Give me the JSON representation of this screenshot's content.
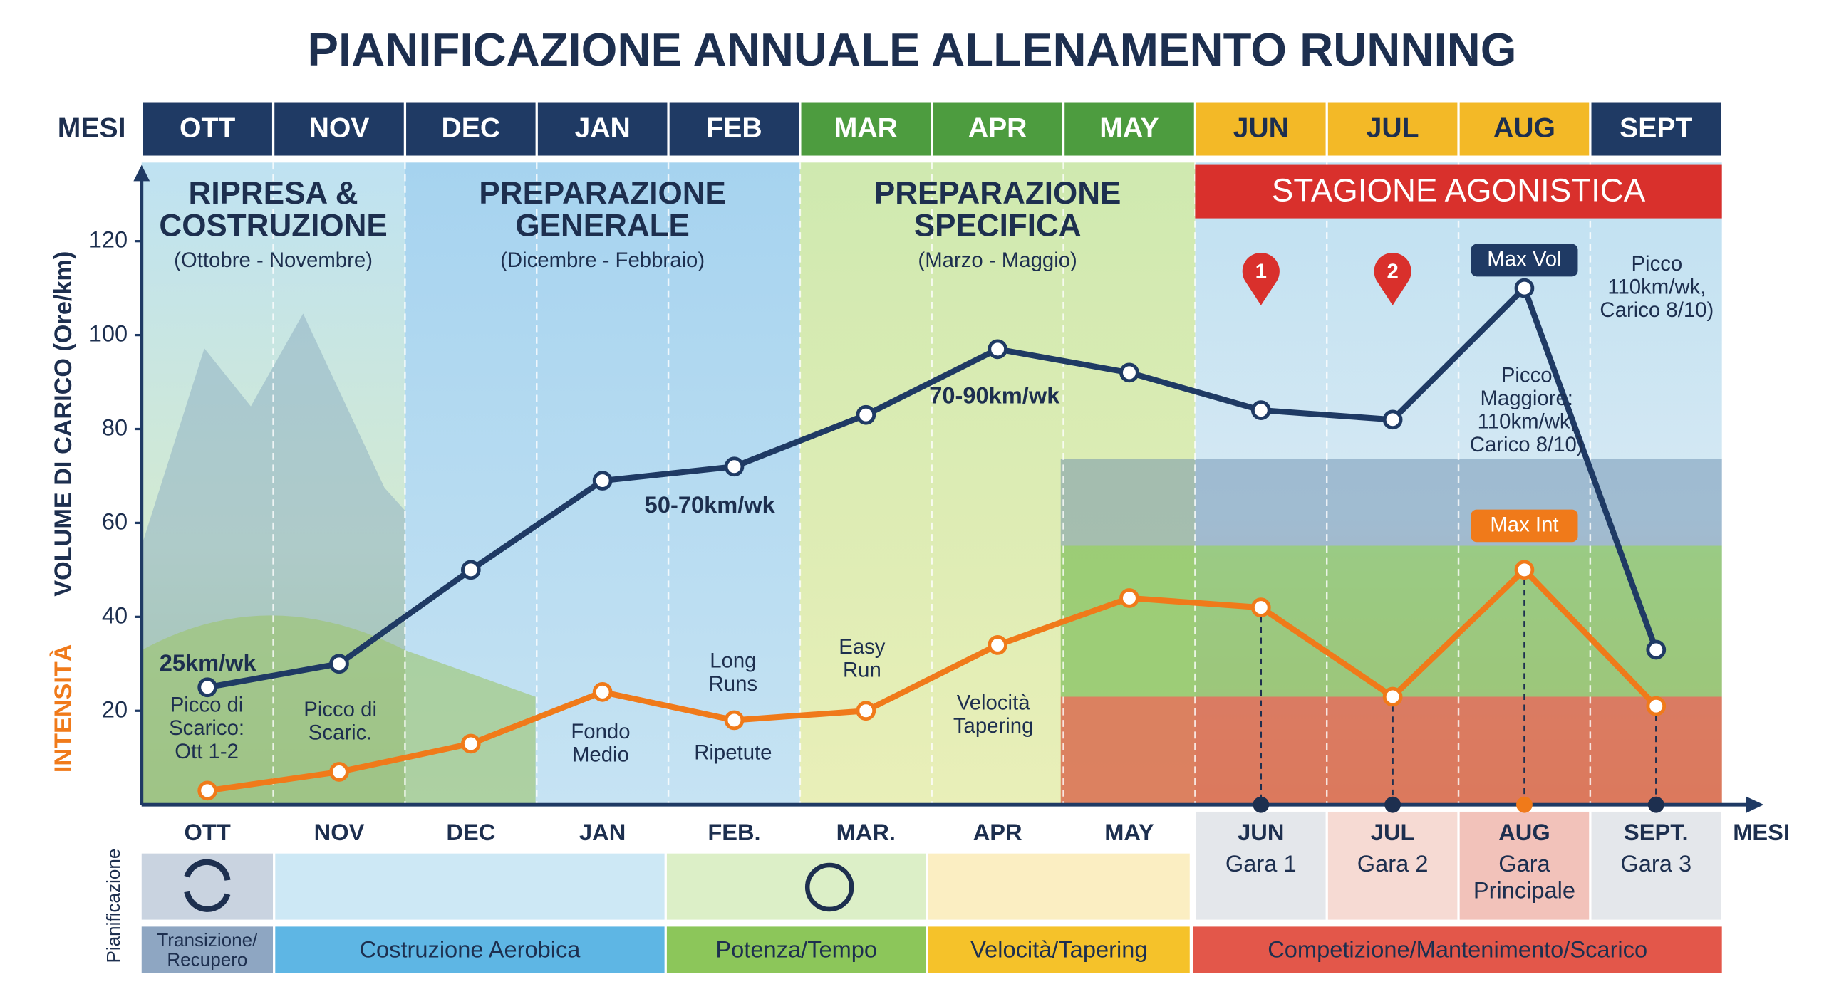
{
  "chart_data": {
    "type": "line",
    "title": "PIANIFICAZIONE ANNUALE ALLENAMENTO RUNNING",
    "months_label": "MESI",
    "months": [
      "OTT",
      "NOV",
      "DEC",
      "JAN",
      "FEB",
      "MAR",
      "APR",
      "MAY",
      "JUN",
      "JUL",
      "AUG",
      "SEPT"
    ],
    "phases": [
      {
        "title": "RIPRESA &\nCOSTRUZIONE",
        "subtitle": "(Ottobre - Novembre)"
      },
      {
        "title": "PREPARAZIONE\nGENERALE",
        "subtitle": "(Dicembre - Febbraio)"
      },
      {
        "title": "PREPARAZIONE\nSPECIFICA",
        "subtitle": "(Marzo - Maggio)"
      },
      {
        "title": "STAGIONE AGONISTICA"
      }
    ],
    "y_label": "VOLUME DI CARICO (Ore/km)",
    "intensity_label": "INTENSITÀ",
    "x_label": "MESI",
    "categories": [
      "OTT",
      "NOV",
      "DEC",
      "JAN",
      "FEB.",
      "MAR.",
      "APR",
      "MAY",
      "JUN",
      "JUL",
      "AUG",
      "SEPT."
    ],
    "category_sublabels": [
      null,
      null,
      null,
      null,
      null,
      null,
      null,
      null,
      "Gara 1",
      "Gara 2",
      "Gara\nPrincipale",
      "Gara 3"
    ],
    "ylim": [
      0,
      135
    ],
    "yticks": [
      20,
      40,
      60,
      80,
      100,
      120
    ],
    "series": [
      {
        "color": "#1f3a64",
        "values": [
          25,
          30,
          50,
          69,
          72,
          83,
          97,
          92,
          84,
          82,
          110,
          33
        ]
      },
      {
        "color": "#f07a1a",
        "values": [
          3,
          7,
          13,
          24,
          18,
          20,
          34,
          44,
          42,
          23,
          50,
          21
        ]
      }
    ],
    "callouts": [
      "Max Vol",
      "Max Int"
    ],
    "pins": [
      "1",
      "2"
    ],
    "annotations": [
      "25km/wk",
      "Picco di\nScarico:\nOtt 1-2",
      "Picco di\nScaric.",
      "50-70km/wk",
      "70-90km/wk",
      "Fondo\nMedio",
      "Long\nRuns",
      "Ripetute",
      "Easy\nRun",
      "Velocità\nTapering",
      "Picco\n110km/wk,\nCarico 8/10)",
      "Picco\nMaggiore:\n110km/wk,\nCarico 8/10)"
    ],
    "planning": {
      "label": "Pianificazione",
      "bands": [
        "Transizione/\nRecupero",
        "Costruzione Aerobica",
        "Potenza/Tempo",
        "Velocità/Tapering",
        "Competizione/Mantenimento/Scarico"
      ]
    }
  }
}
